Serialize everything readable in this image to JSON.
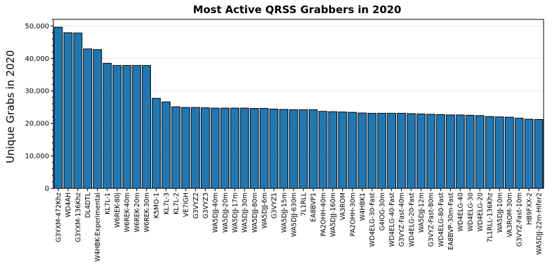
{
  "chart_data": {
    "type": "bar",
    "title": "Most Active QRSS Grabbers in 2020",
    "xlabel": "",
    "ylabel": "Unique Grabs in 2020",
    "ylim": [
      0,
      52000
    ],
    "yticks": [
      0,
      10000,
      20000,
      30000,
      40000,
      50000
    ],
    "ytick_labels": [
      "0",
      "10,000",
      "20,000",
      "30,000",
      "40,000",
      "50,000"
    ],
    "grid": "horizontal",
    "bar_color": "#1f77b4",
    "categories": [
      "G3YXM-472Khz",
      "WD4AH",
      "G3YXM-136Khz",
      "DL4DTL",
      "W4HBK-Experimental",
      "KL7L-1",
      "W6REK-80j",
      "W6REK-40m",
      "W6REK-20m",
      "W6REK-30m",
      "K5MO-1",
      "KL7L-3",
      "KL7L-2",
      "VE7IGH",
      "G3VYZ2",
      "G3VYZ3",
      "WA5DJJ-40m",
      "WA5DJJ-20m",
      "WA5DJJ-17m",
      "WA5DJJ-30m",
      "WA5DJJ-80m",
      "WA5DJJ-6m",
      "G3VYZ1",
      "WA5DJJ-15m",
      "WA5DJJ-630m",
      "7L1RLL",
      "EA8BVP1",
      "PA2OHH-40m",
      "WA5DJJ-160m",
      "VA3ROM",
      "PA2OHH-30m",
      "W4HBK1",
      "WD4ELG-30-Fast",
      "G4IOG-30m",
      "WD4ELG-40-Fast",
      "G3VYZ-Fast-40m",
      "WD4ELG-20-Fast",
      "WA5DJJ-12m",
      "G3VYZ-Fast-80m",
      "WD4ELG-80-Fast",
      "EA8BVP-30m-Fast",
      "WD4ELG-40",
      "WD4ELG-30",
      "WD4ELG-20",
      "7L1RLL-136Khz",
      "WA5DJJ-10m",
      "VA3ROM-30m",
      "G3VYZ-Fast-10m",
      "HB9FXX-2",
      "WA5DJJ-22m-Hifer2"
    ],
    "values": [
      49600,
      47900,
      47800,
      42900,
      42700,
      38500,
      37800,
      37800,
      37800,
      37800,
      27700,
      26600,
      25100,
      24900,
      24900,
      24800,
      24700,
      24700,
      24700,
      24700,
      24600,
      24600,
      24400,
      24300,
      24200,
      24200,
      24200,
      23700,
      23600,
      23500,
      23400,
      23200,
      23100,
      23100,
      23100,
      23100,
      23000,
      22900,
      22800,
      22700,
      22600,
      22600,
      22500,
      22400,
      22100,
      22000,
      21900,
      21600,
      21300,
      21200
    ]
  }
}
